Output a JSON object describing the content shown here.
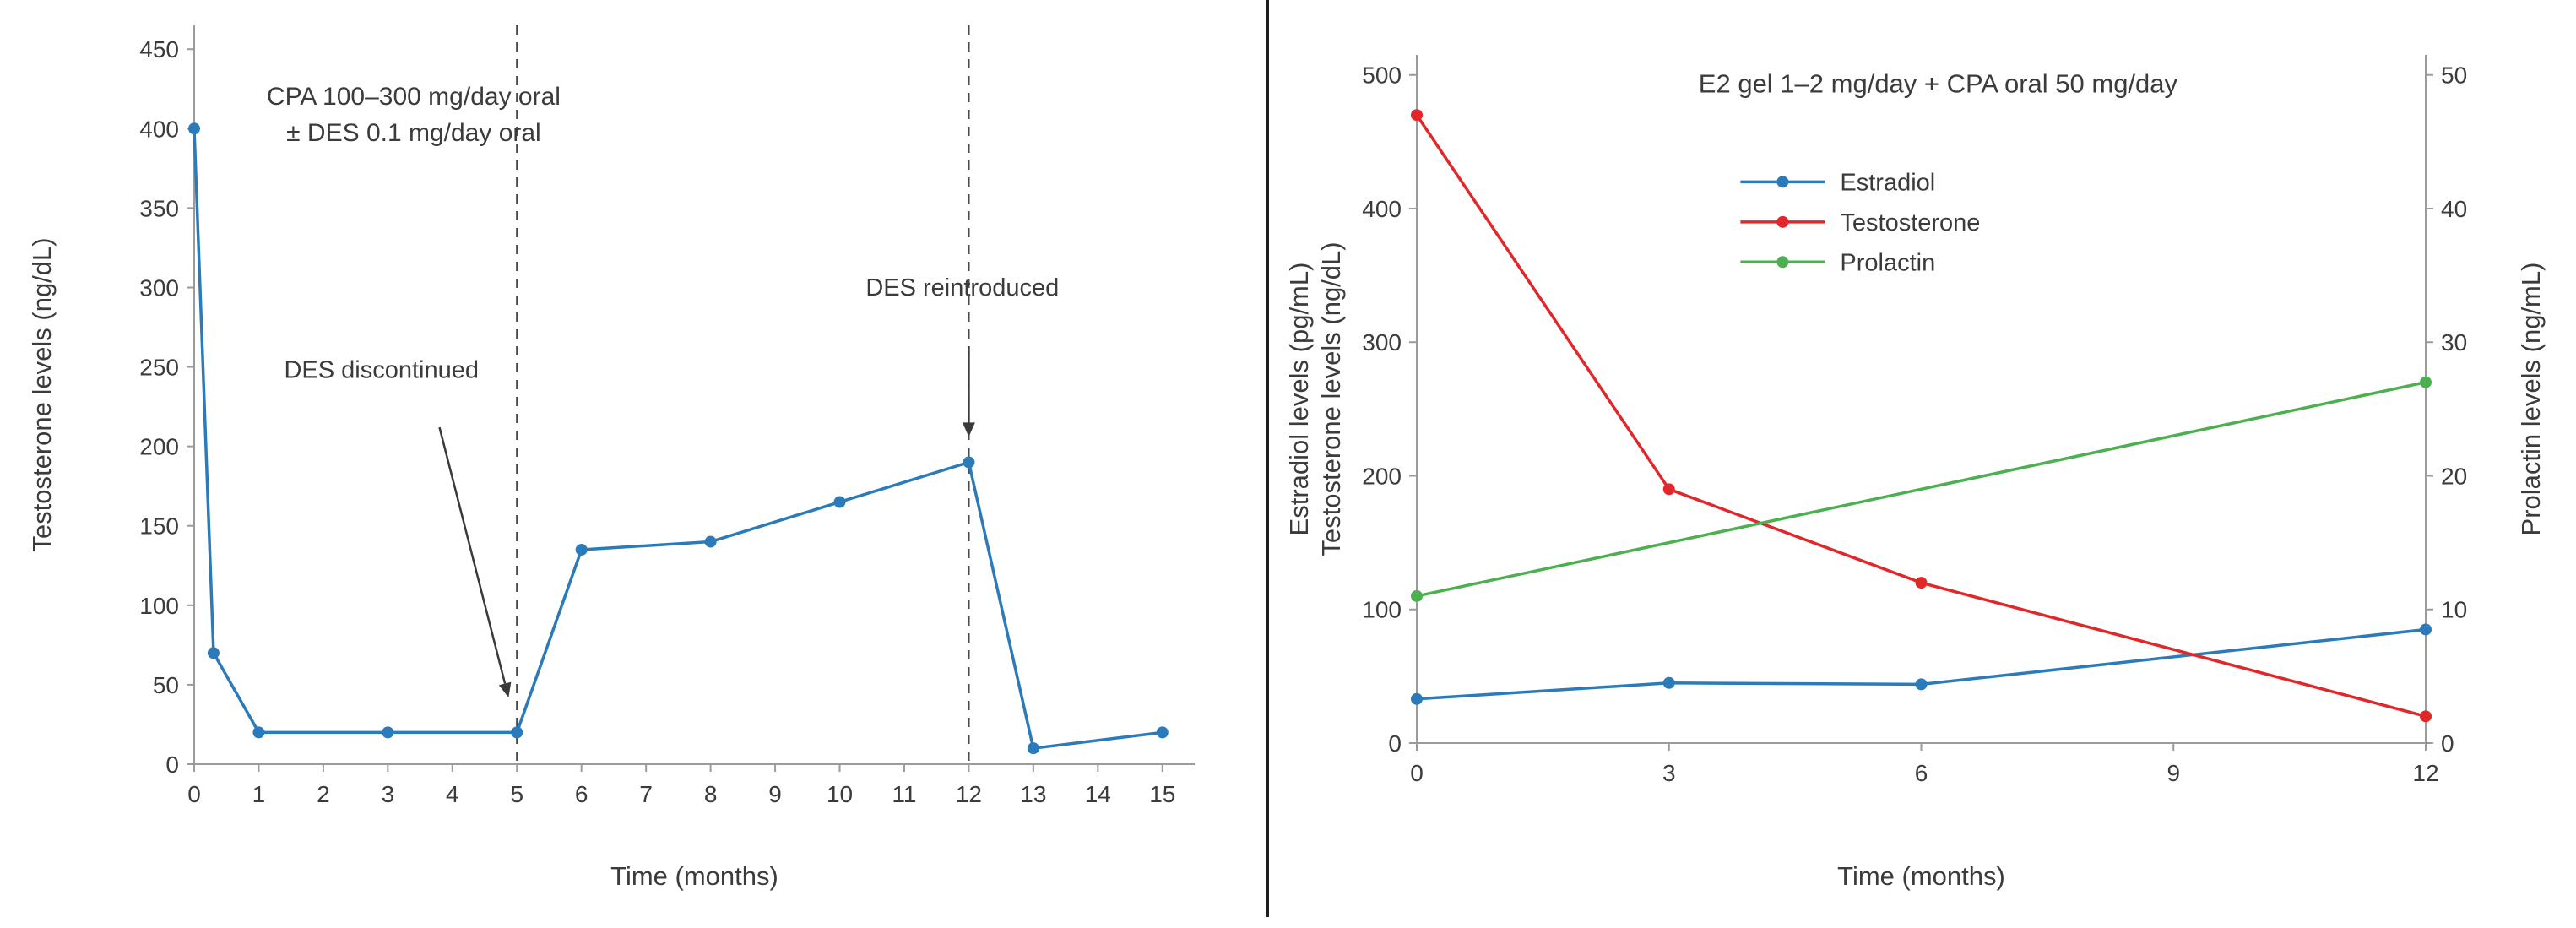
{
  "styles": {
    "background": "#ffffff",
    "text_color": "#3b3b3b",
    "spine_color": "#9b9b9b",
    "dashed_line_color": "#4a4a4a",
    "arrow_color": "#3a3a3a",
    "divider_color": "#1f1f1f",
    "blue": "#2b7bba",
    "red": "#e12729",
    "green": "#4caf50"
  },
  "chart_data": [
    {
      "type": "line",
      "xlabel": "Time (months)",
      "ylabel": "Testosterone levels (ng/dL)",
      "x_range": [
        0,
        15.5
      ],
      "y_range": [
        0,
        465
      ],
      "x_ticks": [
        0,
        1,
        2,
        3,
        4,
        5,
        6,
        7,
        8,
        9,
        10,
        11,
        12,
        13,
        14,
        15
      ],
      "y_ticks": [
        0,
        50,
        100,
        150,
        200,
        250,
        300,
        350,
        400,
        450
      ],
      "grid": false,
      "series": [
        {
          "name": "Testosterone",
          "color": "#2b7bba",
          "axis": "y",
          "points": [
            [
              0,
              400
            ],
            [
              0.3,
              70
            ],
            [
              1,
              20
            ],
            [
              3,
              20
            ],
            [
              5,
              20
            ],
            [
              6,
              135
            ],
            [
              8,
              140
            ],
            [
              10,
              165
            ],
            [
              12,
              190
            ],
            [
              13,
              10
            ],
            [
              15,
              20
            ]
          ]
        }
      ],
      "vlines": [
        {
          "x": 5
        },
        {
          "x": 12
        }
      ],
      "annotation_title": {
        "x": 3.4,
        "y": 415,
        "lines": [
          "CPA 100–300 mg/day oral",
          "± DES 0.1 mg/day oral"
        ]
      },
      "arrow_annotations": [
        {
          "text": "DES discontinued",
          "text_x": 2.9,
          "text_y": 243,
          "x1": 3.8,
          "y1": 212,
          "x2": 4.87,
          "y2": 42
        },
        {
          "text": "DES reintroduced",
          "text_x": 11.9,
          "text_y": 295,
          "x1": 12,
          "y1": 263,
          "x2": 12,
          "y2": 206
        }
      ]
    },
    {
      "type": "line",
      "title": "E2 gel 1–2 mg/day + CPA oral 50 mg/day",
      "title_pos": {
        "x": 6.2,
        "y": 487
      },
      "xlabel": "Time (months)",
      "ylabel_left_lines": [
        "Estradiol levels (pg/mL)",
        "Testosterone levels (ng/dL)"
      ],
      "ylabel_right": "Prolactin levels (ng/mL)",
      "x_range": [
        0,
        12
      ],
      "y_range": [
        0,
        515
      ],
      "y2_range": [
        0,
        51.5
      ],
      "x_ticks": [
        0,
        3,
        6,
        9,
        12
      ],
      "y_ticks": [
        0,
        100,
        200,
        300,
        400,
        500
      ],
      "y2_ticks": [
        0,
        10,
        20,
        30,
        40,
        50
      ],
      "grid": false,
      "series": [
        {
          "name": "Estradiol",
          "color": "#2b7bba",
          "axis": "y",
          "points": [
            [
              0,
              33
            ],
            [
              3,
              45
            ],
            [
              6,
              44
            ],
            [
              12,
              85
            ]
          ]
        },
        {
          "name": "Testosterone",
          "color": "#e12729",
          "axis": "y",
          "points": [
            [
              0,
              470
            ],
            [
              3,
              190
            ],
            [
              6,
              120
            ],
            [
              12,
              20
            ]
          ]
        },
        {
          "name": "Prolactin",
          "color": "#4caf50",
          "axis": "y2",
          "points": [
            [
              0,
              11
            ],
            [
              12,
              27
            ]
          ]
        }
      ],
      "legend": {
        "x": 3.85,
        "line_len": 100,
        "rows_y": [
          420,
          390,
          360
        ],
        "position": "inside-top-center"
      }
    }
  ]
}
